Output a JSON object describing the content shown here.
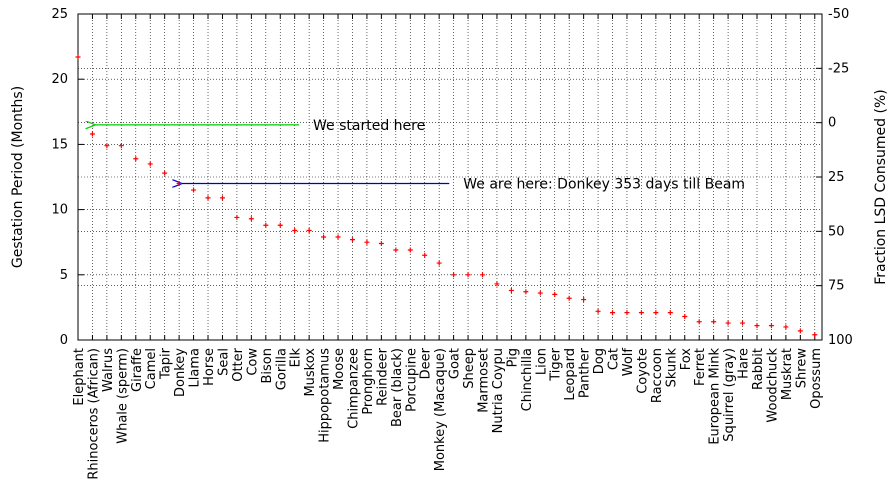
{
  "chart_data": {
    "type": "scatter",
    "ylabel": "Gestation Period (Months)",
    "y2label": "Fraction LSD Consumed (%)",
    "ylim": [
      0,
      25
    ],
    "yticks": [
      0,
      5,
      10,
      15,
      20,
      25
    ],
    "y2lim": [
      -50,
      100
    ],
    "y2ticks": [
      -50,
      -25,
      0,
      25,
      50,
      75,
      100
    ],
    "grid": true,
    "marker_color": "#ff0000",
    "categories": [
      "Elephant",
      "Rhinoceros (African)",
      "Walrus",
      "Whale (sperm)",
      "Giraffe",
      "Camel",
      "Tapir",
      "Donkey",
      "Llama",
      "Horse",
      "Seal",
      "Otter",
      "Cow",
      "Bison",
      "Gorilla",
      "Elk",
      "Muskox",
      "Hippopotamus",
      "Moose",
      "Chimpanzee",
      "Pronghorn",
      "Reindeer",
      "Bear (black)",
      "Porcupine",
      "Deer",
      "Monkey (Macaque)",
      "Goat",
      "Sheep",
      "Marmoset",
      "Nutria Coypu",
      "Pig",
      "Chinchilla",
      "Lion",
      "Tiger",
      "Leopard",
      "Panther",
      "Dog",
      "Cat",
      "Wolf",
      "Coyote",
      "Raccoon",
      "Skunk",
      "Fox",
      "Ferret",
      "European Mink",
      "Squirrel (gray)",
      "Hare",
      "Rabbit",
      "Woodchuck",
      "Muskrat",
      "Shrew",
      "Opossum"
    ],
    "values": [
      21.7,
      15.8,
      14.9,
      14.9,
      13.9,
      13.5,
      12.8,
      12.0,
      11.5,
      10.9,
      10.9,
      9.4,
      9.3,
      8.8,
      8.8,
      8.4,
      8.4,
      7.9,
      7.9,
      7.7,
      7.5,
      7.4,
      6.9,
      6.9,
      6.5,
      5.9,
      5.0,
      5.0,
      5.0,
      4.3,
      3.8,
      3.7,
      3.6,
      3.5,
      3.2,
      3.1,
      2.2,
      2.1,
      2.1,
      2.1,
      2.1,
      2.1,
      1.8,
      1.4,
      1.4,
      1.3,
      1.3,
      1.1,
      1.1,
      1.0,
      0.7,
      0.4
    ],
    "annotations": [
      {
        "text": "We started here",
        "color": "#00cc00",
        "y": 16.5,
        "from_index": 15.3,
        "to_index": 1
      },
      {
        "text": "We are here: Donkey 353 days till Beam",
        "color": "#0000cc",
        "y": 12.0,
        "from_index": 25.7,
        "to_index": 7
      }
    ]
  }
}
